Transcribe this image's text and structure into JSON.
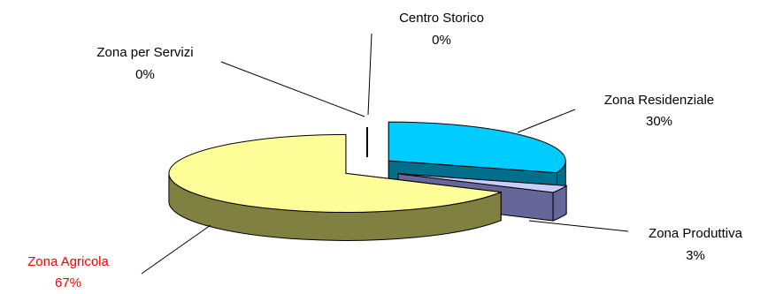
{
  "chart_data": {
    "type": "pie",
    "style": "3d-exploded",
    "title": "",
    "legend": "none",
    "slices": [
      {
        "label": "Zona Residenziale",
        "value": 30,
        "value_label": "30%",
        "top_color": "#00CCFF",
        "side_color": "#006F8C",
        "label_color": "#000000"
      },
      {
        "label": "Zona Produttiva",
        "value": 3,
        "value_label": "3%",
        "top_color": "#CCCCFF",
        "side_color": "#666699",
        "label_color": "#000000"
      },
      {
        "label": "Zona Agricola",
        "value": 67,
        "value_label": "67%",
        "top_color": "#FFFF99",
        "side_color": "#808040",
        "label_color": "#FF0000"
      },
      {
        "label": "Zona per Servizi",
        "value": 0,
        "value_label": "0%",
        "top_color": "#FFFFFF",
        "side_color": "#000000",
        "label_color": "#000000"
      },
      {
        "label": "Centro Storico",
        "value": 0,
        "value_label": "0%",
        "top_color": "#FFFFFF",
        "side_color": "#000000",
        "label_color": "#000000"
      }
    ]
  }
}
